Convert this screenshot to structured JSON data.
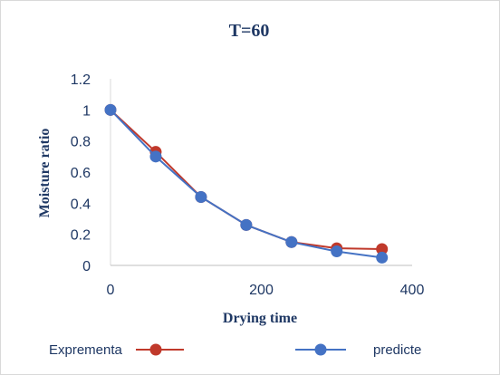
{
  "chart_data": {
    "type": "line",
    "title": "T=60",
    "xlabel": "Drying time",
    "ylabel": "Moisture ratio",
    "xlim": [
      0,
      400
    ],
    "ylim": [
      0,
      1.2
    ],
    "x_ticks": [
      "0",
      "200",
      "400"
    ],
    "y_ticks": [
      "0",
      "0.2",
      "0.4",
      "0.6",
      "0.8",
      "1",
      "1.2"
    ],
    "grid": false,
    "legend_position": "bottom",
    "series": [
      {
        "name": "Exprementa",
        "color": "#c0392b",
        "x": [
          0,
          60,
          120,
          180,
          240,
          300,
          360
        ],
        "y": [
          1.0,
          0.73,
          0.44,
          0.26,
          0.15,
          0.11,
          0.105
        ]
      },
      {
        "name": "predicte",
        "color": "#4472c4",
        "x": [
          0,
          60,
          120,
          180,
          240,
          300,
          360
        ],
        "y": [
          1.0,
          0.7,
          0.44,
          0.26,
          0.15,
          0.09,
          0.05
        ]
      }
    ]
  }
}
